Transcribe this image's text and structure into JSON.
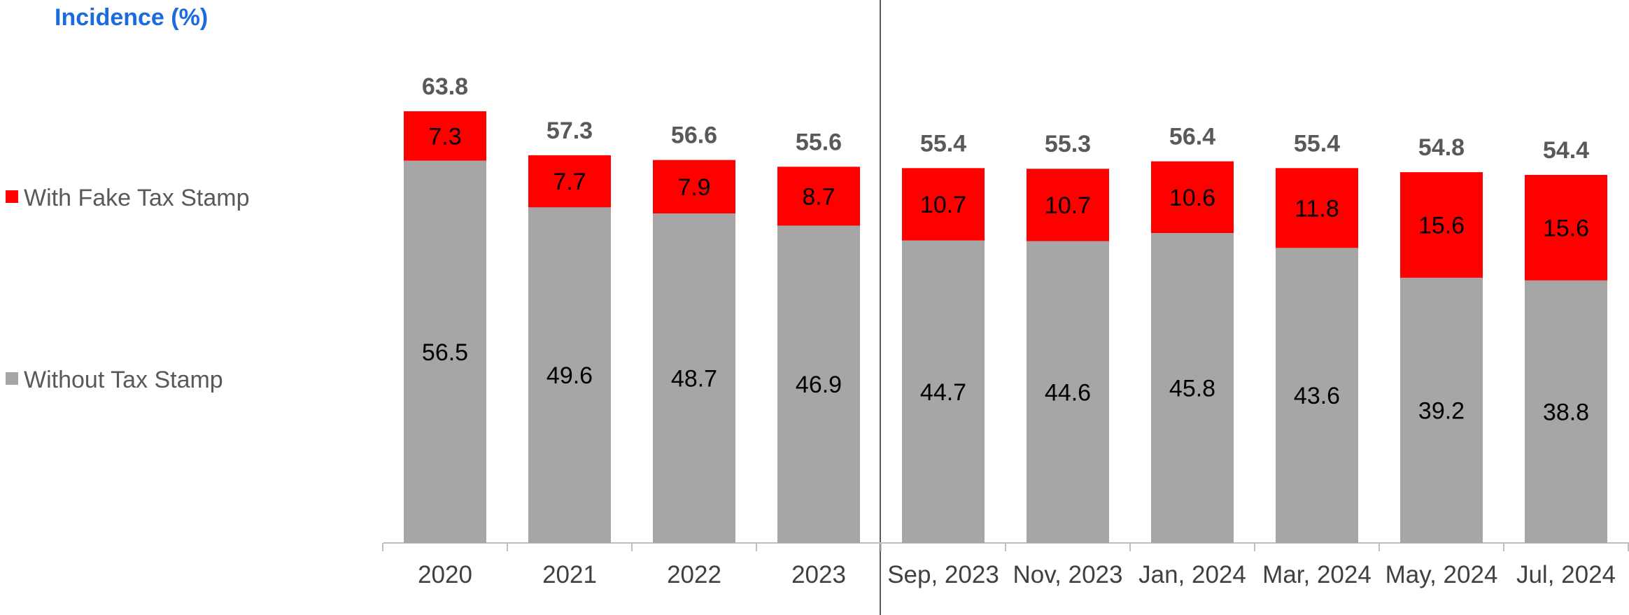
{
  "chart_data": {
    "type": "bar",
    "stacked": true,
    "title": "Incidence (%)",
    "categories": [
      "2020",
      "2021",
      "2022",
      "2023",
      "Sep, 2023",
      "Nov, 2023",
      "Jan, 2024",
      "Mar, 2024",
      "May, 2024",
      "Jul, 2024"
    ],
    "series": [
      {
        "name": "Without Tax Stamp",
        "values": [
          56.5,
          49.6,
          48.7,
          46.9,
          44.7,
          44.6,
          45.8,
          43.6,
          39.2,
          38.8
        ],
        "color": "#a6a6a6"
      },
      {
        "name": "With Fake Tax Stamp",
        "values": [
          7.3,
          7.7,
          7.9,
          8.7,
          10.7,
          10.7,
          10.6,
          11.8,
          15.6,
          15.6
        ],
        "color": "#ff0000"
      }
    ],
    "totals": [
      63.8,
      57.3,
      56.6,
      55.6,
      55.4,
      55.3,
      56.4,
      55.4,
      54.8,
      54.4
    ],
    "legend": {
      "position": "left",
      "entries": [
        "With Fake Tax Stamp",
        "Without Tax Stamp"
      ]
    },
    "ylim": [
      0,
      64
    ],
    "grid": false,
    "title_color": "#1a6be0",
    "separator": {
      "after_index": 3
    }
  }
}
